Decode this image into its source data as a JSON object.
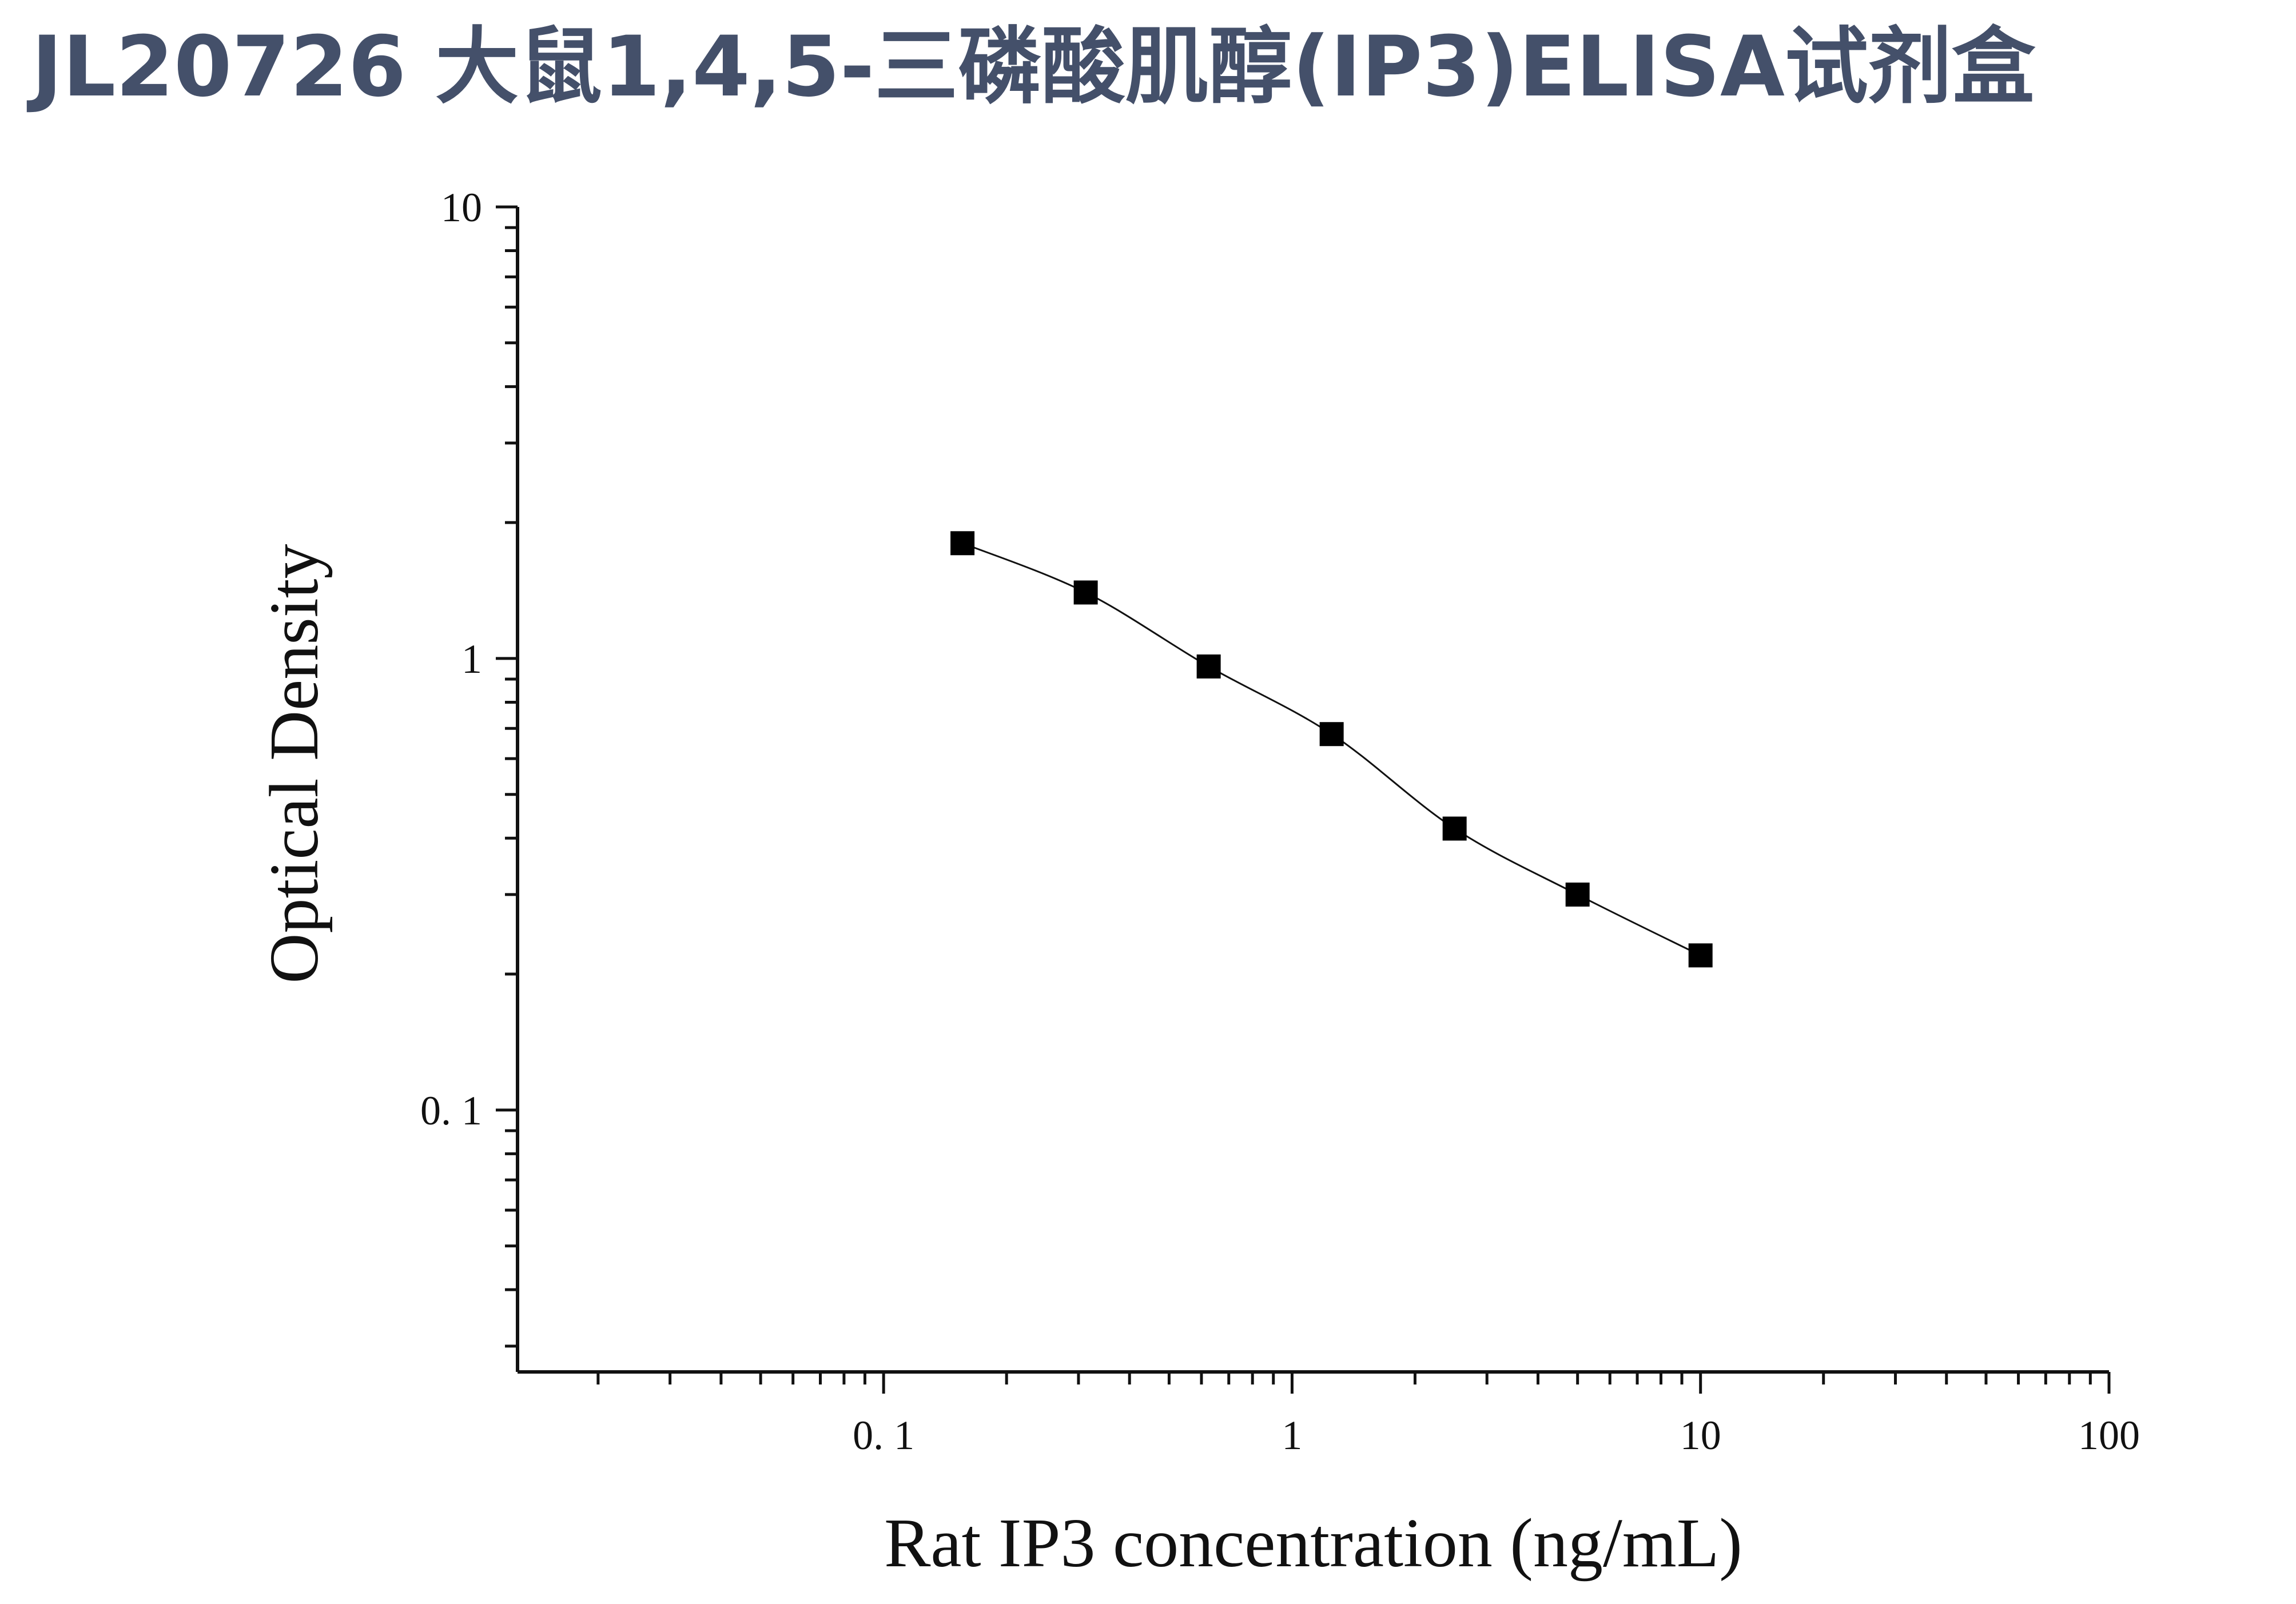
{
  "page": {
    "title": "JL20726 大鼠1,4,5-三磷酸肌醇(IP3)ELISA试剂盒"
  },
  "chart_data": {
    "type": "scatter",
    "title": "",
    "xlabel": "Rat IP3 concentration (ng/mL)",
    "ylabel": "Optical Density",
    "x_scale": "log",
    "y_scale": "log",
    "xlim": [
      0.0127,
      100
    ],
    "ylim": [
      0.0263,
      10
    ],
    "x_ticks": [
      {
        "value": 0.1,
        "label": "0. 1"
      },
      {
        "value": 1,
        "label": "1"
      },
      {
        "value": 10,
        "label": "10"
      },
      {
        "value": 100,
        "label": "100"
      }
    ],
    "y_ticks": [
      {
        "value": 0.1,
        "label": "0. 1"
      },
      {
        "value": 1,
        "label": "1"
      },
      {
        "value": 10,
        "label": "10"
      }
    ],
    "grid": false,
    "legend": "none",
    "series": [
      {
        "marker": "square",
        "fit": "smooth curve",
        "color": "#000000",
        "points": [
          {
            "x": 0.156,
            "y": 1.8
          },
          {
            "x": 0.3125,
            "y": 1.4
          },
          {
            "x": 0.625,
            "y": 0.96
          },
          {
            "x": 1.25,
            "y": 0.68
          },
          {
            "x": 2.5,
            "y": 0.42
          },
          {
            "x": 5,
            "y": 0.3
          },
          {
            "x": 10,
            "y": 0.22
          }
        ]
      }
    ]
  }
}
